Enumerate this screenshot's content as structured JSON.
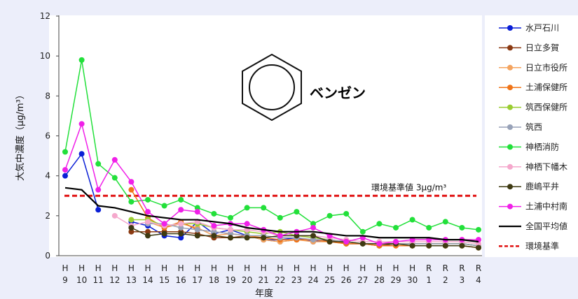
{
  "chart_data": {
    "type": "line",
    "title": "ベンゼン",
    "xlabel": "年度",
    "ylabel": "大気中濃度（μg/m³）",
    "ylim": [
      0,
      12
    ],
    "yticks": [
      0,
      2,
      4,
      6,
      8,
      10,
      12
    ],
    "grid": false,
    "legend_position": "right",
    "categories": [
      {
        "era": "H",
        "num": "9"
      },
      {
        "era": "H",
        "num": "10"
      },
      {
        "era": "H",
        "num": "11"
      },
      {
        "era": "H",
        "num": "12"
      },
      {
        "era": "H",
        "num": "13"
      },
      {
        "era": "H",
        "num": "14"
      },
      {
        "era": "H",
        "num": "15"
      },
      {
        "era": "H",
        "num": "16"
      },
      {
        "era": "H",
        "num": "17"
      },
      {
        "era": "H",
        "num": "18"
      },
      {
        "era": "H",
        "num": "19"
      },
      {
        "era": "H",
        "num": "20"
      },
      {
        "era": "H",
        "num": "21"
      },
      {
        "era": "H",
        "num": "22"
      },
      {
        "era": "H",
        "num": "23"
      },
      {
        "era": "H",
        "num": "24"
      },
      {
        "era": "H",
        "num": "25"
      },
      {
        "era": "H",
        "num": "26"
      },
      {
        "era": "H",
        "num": "27"
      },
      {
        "era": "H",
        "num": "28"
      },
      {
        "era": "H",
        "num": "29"
      },
      {
        "era": "H",
        "num": "30"
      },
      {
        "era": "R",
        "num": "1"
      },
      {
        "era": "R",
        "num": "2"
      },
      {
        "era": "R",
        "num": "3"
      },
      {
        "era": "R",
        "num": "4"
      }
    ],
    "standard": {
      "value": 3,
      "label": "環境基準値 3μg/m³"
    },
    "series": [
      {
        "name": "水戸石川",
        "color": "#0a1fd6",
        "values": [
          4.0,
          5.1,
          2.3,
          null,
          1.7,
          1.5,
          1.0,
          0.9,
          1.7,
          1.1,
          1.3,
          1.0,
          0.8,
          0.8,
          0.9,
          0.7,
          0.8,
          0.6,
          0.6,
          0.5,
          0.6,
          0.6,
          0.6,
          0.6,
          0.6,
          0.5
        ]
      },
      {
        "name": "日立多賀",
        "color": "#8b3a12",
        "values": [
          null,
          null,
          null,
          null,
          1.2,
          1.2,
          1.2,
          1.2,
          1.1,
          0.9,
          0.9,
          1.0,
          0.8,
          0.7,
          0.8,
          0.8,
          0.8,
          0.6,
          0.6,
          0.5,
          0.6,
          0.6,
          0.6,
          0.6,
          0.6,
          0.5
        ]
      },
      {
        "name": "日立市役所",
        "color": "#f4a460",
        "values": [
          null,
          null,
          null,
          null,
          null,
          1.7,
          1.4,
          1.6,
          1.4,
          1.0,
          1.1,
          1.0,
          0.8,
          0.7,
          0.8,
          0.7,
          0.7,
          0.6,
          0.6,
          0.5,
          0.5,
          0.5,
          0.5,
          0.5,
          0.5,
          0.4
        ]
      },
      {
        "name": "土浦保健所",
        "color": "#f07418",
        "values": [
          null,
          null,
          null,
          null,
          3.3,
          1.9,
          1.4,
          1.7,
          1.3,
          1.2,
          1.1,
          1.0,
          0.9,
          0.8,
          0.8,
          0.8,
          0.7,
          0.6,
          0.6,
          0.5,
          0.5,
          0.5,
          0.5,
          0.5,
          0.5,
          0.4
        ]
      },
      {
        "name": "筑西保健所",
        "color": "#9acd32",
        "values": [
          null,
          null,
          null,
          null,
          1.8,
          1.8,
          1.5,
          1.6,
          1.6,
          1.4,
          1.3,
          1.2,
          1.1,
          1.2,
          1.0,
          0.9,
          0.8,
          0.7,
          0.6,
          0.6,
          0.6,
          0.6,
          0.6,
          0.6,
          0.6,
          0.5
        ]
      },
      {
        "name": "筑西",
        "color": "#98a2b8",
        "values": [
          null,
          null,
          null,
          null,
          null,
          1.6,
          1.6,
          1.4,
          1.3,
          1.2,
          1.1,
          1.0,
          1.0,
          0.9,
          0.9,
          0.8,
          0.8,
          0.7,
          0.6,
          0.6,
          0.6,
          0.6,
          0.6,
          0.6,
          0.6,
          0.5
        ]
      },
      {
        "name": "神栖消防",
        "color": "#22e03a",
        "values": [
          5.2,
          9.8,
          4.6,
          3.9,
          2.7,
          2.8,
          2.5,
          2.8,
          2.4,
          2.1,
          1.9,
          2.4,
          2.4,
          1.9,
          2.2,
          1.6,
          2.0,
          2.1,
          1.2,
          1.6,
          1.4,
          1.8,
          1.4,
          1.7,
          1.4,
          1.3
        ]
      },
      {
        "name": "神栖下幡木",
        "color": "#f5a8cc",
        "values": [
          null,
          null,
          null,
          2.0,
          1.5,
          1.7,
          1.5,
          1.6,
          1.7,
          1.4,
          1.3,
          1.3,
          1.2,
          1.0,
          1.0,
          1.0,
          0.9,
          0.8,
          0.7,
          0.7,
          0.7,
          0.7,
          0.7,
          0.7,
          0.7,
          0.6
        ]
      },
      {
        "name": "鹿嶋平井",
        "color": "#3e3a12",
        "values": [
          null,
          null,
          null,
          null,
          1.4,
          1.0,
          1.1,
          1.1,
          1.0,
          1.0,
          0.9,
          0.9,
          0.9,
          1.0,
          1.0,
          1.0,
          0.7,
          0.7,
          0.6,
          0.6,
          0.6,
          0.5,
          0.5,
          0.5,
          0.5,
          0.4
        ]
      },
      {
        "name": "土浦中村南",
        "color": "#f020e8",
        "values": [
          4.3,
          6.6,
          3.3,
          4.8,
          3.7,
          2.2,
          1.6,
          2.3,
          2.2,
          1.5,
          1.6,
          1.6,
          1.3,
          1.0,
          1.2,
          1.4,
          1.0,
          0.7,
          0.9,
          0.6,
          0.7,
          0.8,
          0.8,
          0.8,
          0.8,
          0.8
        ]
      },
      {
        "name": "全国平均値",
        "color": "#000000",
        "values": [
          3.4,
          3.3,
          2.5,
          2.4,
          2.2,
          2.0,
          1.9,
          1.8,
          1.8,
          1.7,
          1.6,
          1.4,
          1.3,
          1.2,
          1.2,
          1.2,
          1.1,
          1.0,
          1.0,
          0.9,
          0.9,
          0.9,
          0.9,
          0.8,
          0.8,
          0.7
        ]
      }
    ],
    "legend_standard_label": "環境基準"
  },
  "colors": {
    "standard_line": "#e01010",
    "background": "#eceefa",
    "plot_bg": "#ffffff"
  },
  "icon": "benzene-ring-icon"
}
